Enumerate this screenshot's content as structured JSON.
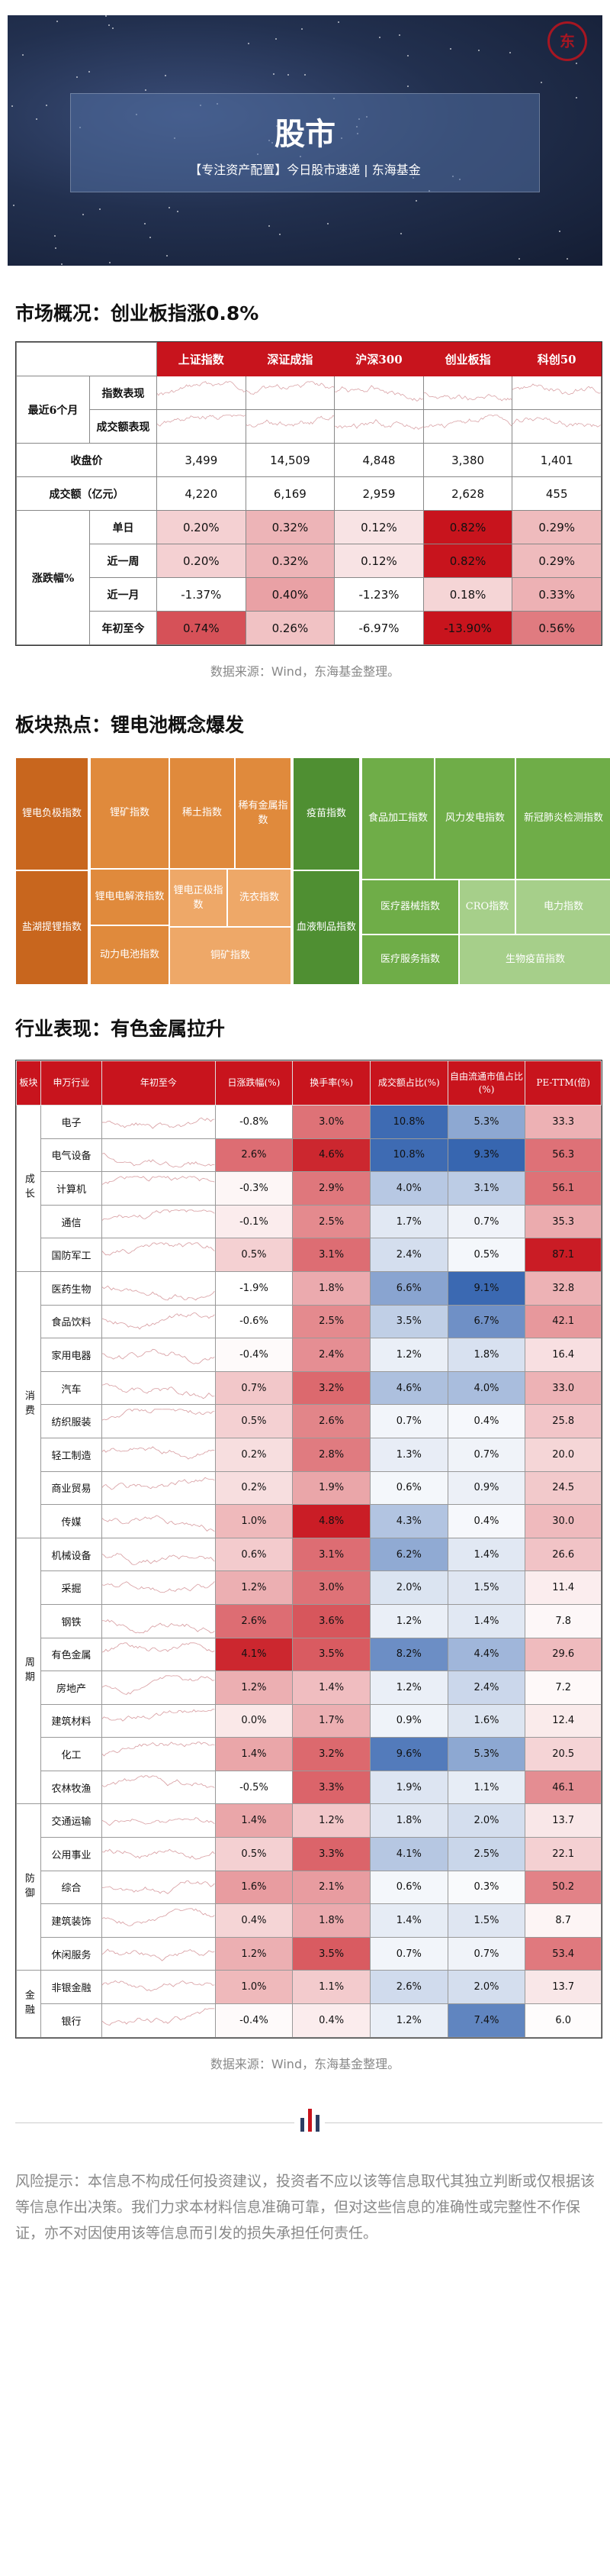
{
  "banner": {
    "title": "股市",
    "subtitle": "【专注资产配置】今日股市速递 | 东海基金",
    "logo": "东"
  },
  "market": {
    "heading": "市场概况：创业板指涨0.8%",
    "columns": [
      "上证指数",
      "深证成指",
      "沪深300",
      "创业板指",
      "科创50"
    ],
    "group_label": "最近6个月",
    "spark_rows": [
      "指数表现",
      "成交额表现"
    ],
    "close_label": "收盘价",
    "close": [
      "3,499",
      "14,509",
      "4,848",
      "3,380",
      "1,401"
    ],
    "turnover_label": "成交额（亿元）",
    "turnover": [
      "4,220",
      "6,169",
      "2,959",
      "2,628",
      "455"
    ],
    "change_group": "涨跌幅%",
    "changes": [
      {
        "label": "单日",
        "values": [
          "0.20%",
          "0.32%",
          "0.12%",
          "0.82%",
          "0.29%"
        ]
      },
      {
        "label": "近一周",
        "values": [
          "0.20%",
          "0.32%",
          "0.12%",
          "0.82%",
          "0.29%"
        ]
      },
      {
        "label": "近一月",
        "values": [
          "-1.37%",
          "0.40%",
          "-1.23%",
          "0.18%",
          "0.33%"
        ]
      },
      {
        "label": "年初至今",
        "values": [
          "0.74%",
          "0.26%",
          "-6.97%",
          "-13.90%",
          "0.56%"
        ]
      }
    ],
    "source": "数据来源：Wind，东海基金整理。"
  },
  "sector": {
    "heading": "板块热点：锂电池概念爆发",
    "tiles": [
      "锂电负极指数",
      "盐湖提锂指数",
      "锂矿指数",
      "稀土指数",
      "稀有金属指数",
      "锂电电解液指数",
      "锂电正极指数",
      "洗衣指数",
      "动力电池指数",
      "铜矿指数",
      "疫苗指数",
      "血液制品指数",
      "食品加工指数",
      "风力发电指数",
      "新冠肺炎检测指数",
      "医疗器械指数",
      "CRO指数",
      "电力指数",
      "医疗服务指数",
      "生物疫苗指数"
    ]
  },
  "industry": {
    "heading": "行业表现：有色金属拉升",
    "headers": [
      "板块",
      "申万行业",
      "年初至今",
      "日涨跌幅(%)",
      "换手率(%)",
      "成交额占比(%)",
      "自由流通市值占比(%)",
      "PE-TTM(倍)"
    ],
    "groups": [
      {
        "name": "成长",
        "rows": [
          [
            "电子",
            "-0.8%",
            "3.0%",
            "10.8%",
            "5.3%",
            "33.3"
          ],
          [
            "电气设备",
            "2.6%",
            "4.6%",
            "10.8%",
            "9.3%",
            "56.3"
          ],
          [
            "计算机",
            "-0.3%",
            "2.9%",
            "4.0%",
            "3.1%",
            "56.1"
          ],
          [
            "通信",
            "-0.1%",
            "2.5%",
            "1.7%",
            "0.7%",
            "35.3"
          ],
          [
            "国防军工",
            "0.5%",
            "3.1%",
            "2.4%",
            "0.5%",
            "87.1"
          ]
        ]
      },
      {
        "name": "消费",
        "rows": [
          [
            "医药生物",
            "-1.9%",
            "1.8%",
            "6.6%",
            "9.1%",
            "32.8"
          ],
          [
            "食品饮料",
            "-0.6%",
            "2.5%",
            "3.5%",
            "6.7%",
            "42.1"
          ],
          [
            "家用电器",
            "-0.4%",
            "2.4%",
            "1.2%",
            "1.8%",
            "16.4"
          ],
          [
            "汽车",
            "0.7%",
            "3.2%",
            "4.6%",
            "4.0%",
            "33.0"
          ],
          [
            "纺织服装",
            "0.5%",
            "2.6%",
            "0.7%",
            "0.4%",
            "25.8"
          ],
          [
            "轻工制造",
            "0.2%",
            "2.8%",
            "1.3%",
            "0.7%",
            "20.0"
          ],
          [
            "商业贸易",
            "0.2%",
            "1.9%",
            "0.6%",
            "0.9%",
            "24.5"
          ],
          [
            "传媒",
            "1.0%",
            "4.8%",
            "4.3%",
            "0.4%",
            "30.0"
          ]
        ]
      },
      {
        "name": "周期",
        "rows": [
          [
            "机械设备",
            "0.6%",
            "3.1%",
            "6.2%",
            "1.4%",
            "26.6"
          ],
          [
            "采掘",
            "1.2%",
            "3.0%",
            "2.0%",
            "1.5%",
            "11.4"
          ],
          [
            "钢铁",
            "2.6%",
            "3.6%",
            "1.2%",
            "1.4%",
            "7.8"
          ],
          [
            "有色金属",
            "4.1%",
            "3.5%",
            "8.2%",
            "4.4%",
            "29.6"
          ],
          [
            "房地产",
            "1.2%",
            "1.4%",
            "1.2%",
            "2.4%",
            "7.2"
          ],
          [
            "建筑材料",
            "0.0%",
            "1.7%",
            "0.9%",
            "1.6%",
            "12.4"
          ],
          [
            "化工",
            "1.4%",
            "3.2%",
            "9.6%",
            "5.3%",
            "20.5"
          ],
          [
            "农林牧渔",
            "-0.5%",
            "3.3%",
            "1.9%",
            "1.1%",
            "46.1"
          ]
        ]
      },
      {
        "name": "防御",
        "rows": [
          [
            "交通运输",
            "1.4%",
            "1.2%",
            "1.8%",
            "2.0%",
            "13.7"
          ],
          [
            "公用事业",
            "0.5%",
            "3.3%",
            "4.1%",
            "2.5%",
            "22.1"
          ],
          [
            "综合",
            "1.6%",
            "2.1%",
            "0.6%",
            "0.3%",
            "50.2"
          ],
          [
            "建筑装饰",
            "0.4%",
            "1.8%",
            "1.4%",
            "1.5%",
            "8.7"
          ],
          [
            "休闲服务",
            "1.2%",
            "3.5%",
            "0.7%",
            "0.7%",
            "53.4"
          ]
        ]
      },
      {
        "name": "金融",
        "rows": [
          [
            "非银金融",
            "1.0%",
            "1.1%",
            "2.6%",
            "2.0%",
            "13.7"
          ],
          [
            "银行",
            "-0.4%",
            "0.4%",
            "1.2%",
            "7.4%",
            "6.0"
          ]
        ]
      }
    ],
    "source": "数据来源：Wind，东海基金整理。"
  },
  "risk": "风险提示：本信息不构成任何投资建议，投资者不应以该等信息取代其独立判断或仅根据该等信息作出决策。我们力求本材料信息准确可靠，但对这些信息的准确性或完整性不作保证，亦不对因使用该等信息而引发的损失承担任何责任。",
  "colors": {
    "brand_red": "#c8141d",
    "navy": "#2c3e63"
  }
}
